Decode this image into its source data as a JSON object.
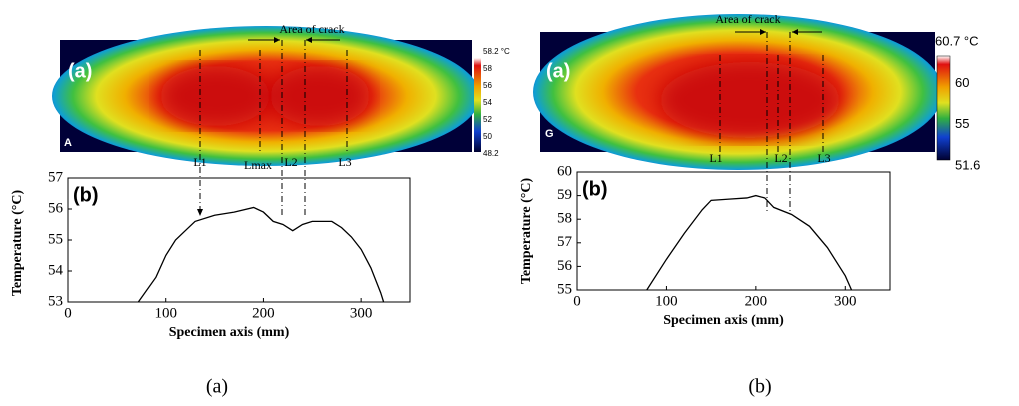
{
  "panels": [
    {
      "caption": "(a)",
      "image_label": "(a)",
      "corner_label": "A",
      "crack_label": "Area of crack",
      "line_labels": [
        "L1",
        "Lmax",
        "L2",
        "L3"
      ],
      "colorbar_labels": [
        "58.2 °C",
        "58",
        "56",
        "54",
        "52",
        "50",
        "48.2"
      ]
    },
    {
      "caption": "(b)",
      "image_label": "(a)",
      "corner_label": "G",
      "crack_label": "Area of crack",
      "line_labels": [
        "L1",
        "L2",
        "L3"
      ],
      "colorbar_labels": [
        "60.7 °C",
        "60",
        "55",
        "51.6"
      ]
    }
  ],
  "chart_data": [
    {
      "type": "line",
      "panel_label": "(b)",
      "xlabel": "Specimen axis (mm)",
      "ylabel": "Temperature (°C)",
      "x": [
        72,
        90,
        100,
        110,
        120,
        130,
        150,
        170,
        190,
        200,
        210,
        220,
        230,
        240,
        250,
        260,
        270,
        280,
        290,
        300,
        310,
        320,
        323
      ],
      "series": [
        {
          "color": "#000000",
          "values": [
            53,
            53.8,
            54.5,
            55,
            55.3,
            55.6,
            55.8,
            55.9,
            56.05,
            55.9,
            55.6,
            55.5,
            55.3,
            55.5,
            55.6,
            55.6,
            55.6,
            55.4,
            55.1,
            54.7,
            54.1,
            53.3,
            53
          ]
        }
      ],
      "xlim": [
        0,
        350
      ],
      "xticks": [
        0,
        100,
        200,
        300
      ],
      "ylim": [
        53,
        57
      ],
      "yticks": [
        53,
        54,
        55,
        56,
        57
      ]
    },
    {
      "type": "line",
      "panel_label": "(b)",
      "xlabel": "Specimen axis (mm)",
      "ylabel": "Temperature (°C)",
      "x": [
        78,
        100,
        120,
        140,
        150,
        170,
        190,
        200,
        210,
        220,
        240,
        260,
        280,
        300,
        307
      ],
      "series": [
        {
          "color": "#000000",
          "values": [
            55,
            56.3,
            57.4,
            58.4,
            58.8,
            58.85,
            58.9,
            59.0,
            58.9,
            58.5,
            58.2,
            57.7,
            56.8,
            55.6,
            55
          ]
        }
      ],
      "xlim": [
        0,
        350
      ],
      "xticks": [
        0,
        100,
        200,
        300
      ],
      "ylim": [
        55,
        60
      ],
      "yticks": [
        55,
        56,
        57,
        58,
        59,
        60
      ]
    }
  ]
}
